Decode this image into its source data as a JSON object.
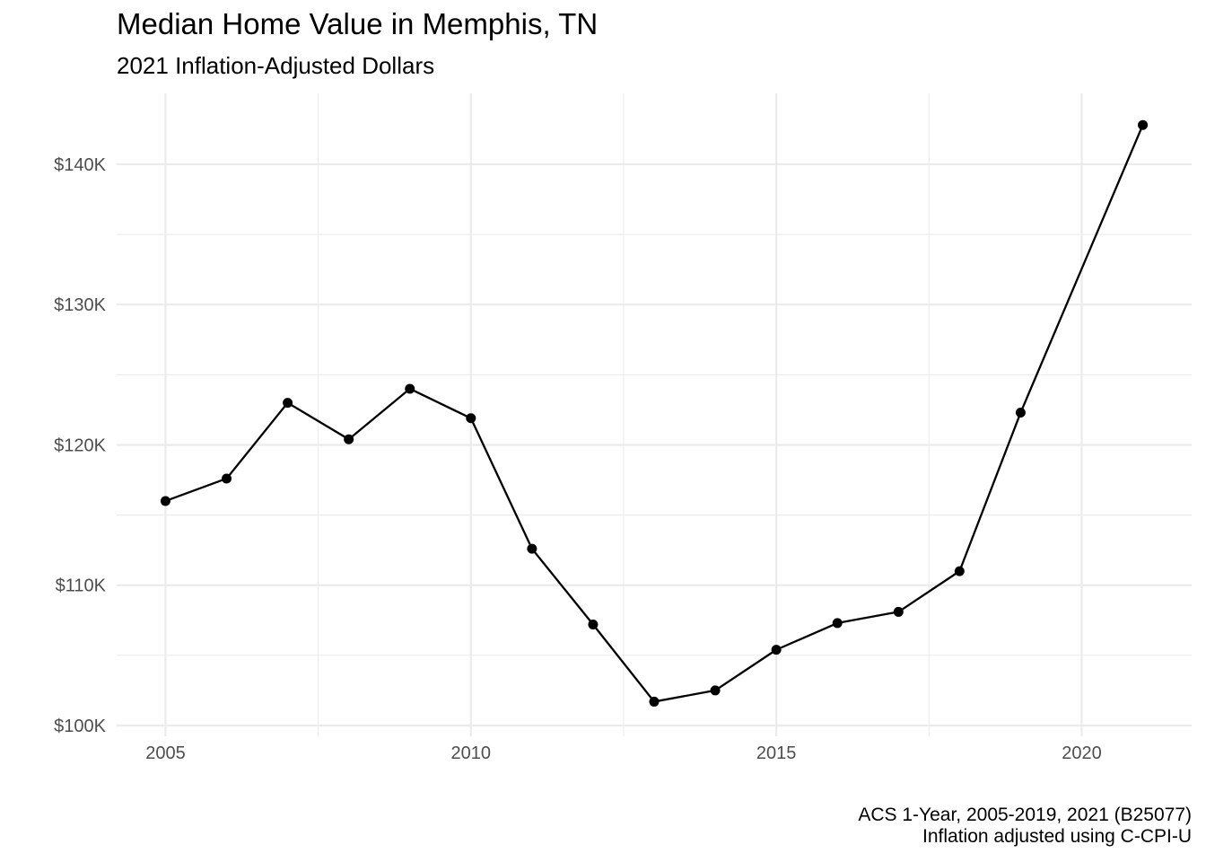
{
  "chart_data": {
    "type": "line",
    "title": "Median Home Value in Memphis, TN",
    "subtitle": "2021 Inflation-Adjusted Dollars",
    "xlabel": "",
    "ylabel": "",
    "x": [
      2005,
      2006,
      2007,
      2008,
      2009,
      2010,
      2011,
      2012,
      2013,
      2014,
      2015,
      2016,
      2017,
      2018,
      2019,
      2021
    ],
    "series": [
      {
        "values": [
          116000,
          117600,
          123000,
          120400,
          124000,
          121900,
          112600,
          107200,
          101700,
          102500,
          105400,
          107300,
          108100,
          111000,
          122300,
          142800
        ]
      }
    ],
    "xlim": [
      2004.2,
      2021.8
    ],
    "ylim": [
      100000,
      145500
    ],
    "x_ticks": [
      2005,
      2010,
      2015,
      2020
    ],
    "y_ticks": [
      100000,
      110000,
      120000,
      130000,
      140000
    ],
    "x_tick_labels": [
      "2005",
      "2010",
      "2015",
      "2020"
    ],
    "y_tick_labels": [
      "$100K",
      "$110K",
      "$120K",
      "$130K",
      "$140K"
    ],
    "grid": true,
    "line_color": "#000000",
    "grid_color": "#ebebeb",
    "caption": [
      "ACS 1-Year, 2005-2019, 2021 (B25077)",
      "Inflation adjusted using C-CPI-U"
    ]
  }
}
